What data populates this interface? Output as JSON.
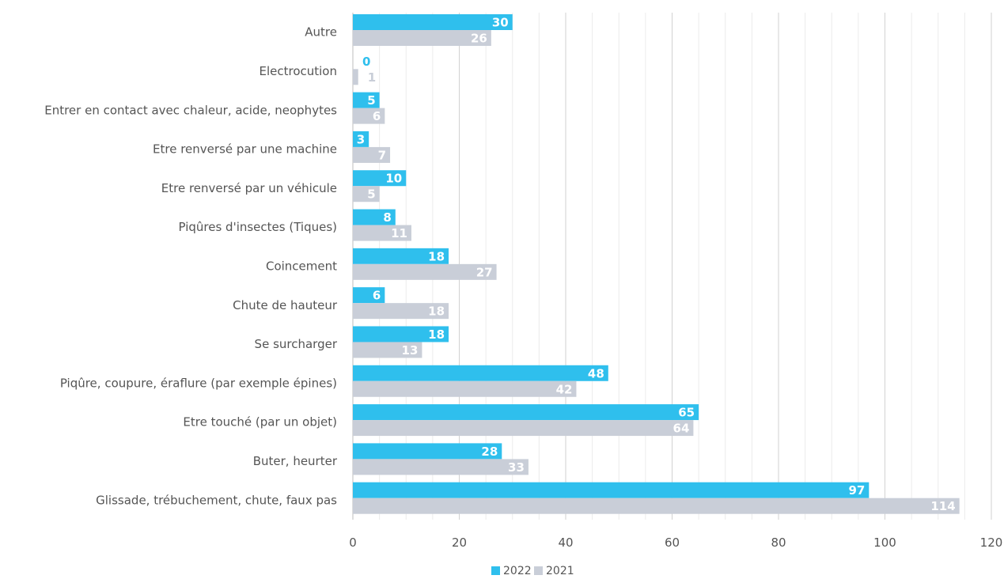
{
  "chart_data": {
    "type": "bar",
    "orientation": "horizontal",
    "categories": [
      "Autre",
      "Electrocution",
      "Entrer en contact avec chaleur, acide, neophytes",
      "Etre renversé par une machine",
      "Etre renversé par un véhicule",
      "Piqûres d'insectes (Tiques)",
      "Coincement",
      "Chute de hauteur",
      "Se surcharger",
      "Piqûre, coupure, éraflure (par exemple épines)",
      "Etre touché (par un objet)",
      "Buter, heurter",
      "Glissade, trébuchement, chute, faux pas"
    ],
    "series": [
      {
        "name": "2022",
        "color": "#2fbfed",
        "values": [
          30,
          0,
          5,
          3,
          10,
          8,
          18,
          6,
          18,
          48,
          65,
          28,
          97
        ]
      },
      {
        "name": "2021",
        "color": "#c9ced8",
        "values": [
          26,
          1,
          6,
          7,
          5,
          11,
          27,
          18,
          13,
          42,
          64,
          33,
          114
        ]
      }
    ],
    "xlim": [
      0,
      120
    ],
    "xticks": [
      "0",
      "20",
      "40",
      "60",
      "80",
      "100",
      "120"
    ],
    "grid": true,
    "legend_position": "bottom",
    "label_colors": {
      "outside_2022": "#2fbfed",
      "outside_2021": "#c9ced8",
      "inside": "#ffffff"
    }
  }
}
